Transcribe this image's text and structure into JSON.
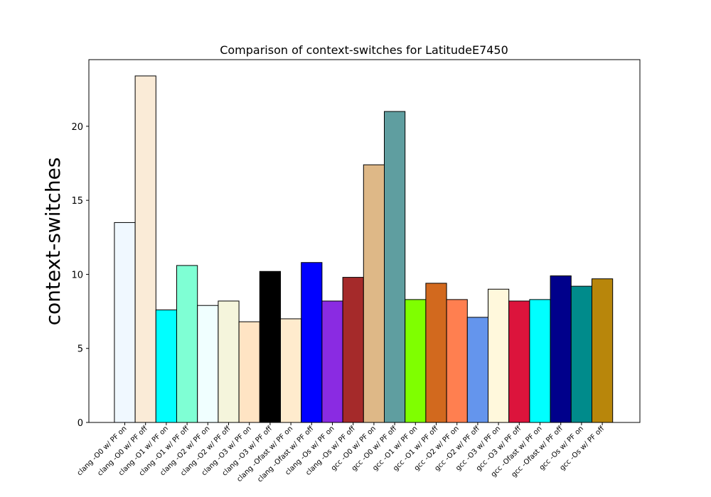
{
  "chart_data": {
    "type": "bar",
    "title": "Comparison of context-switches for LatitudeE7450",
    "xlabel": "",
    "ylabel": "context-switches",
    "ylim": [
      0,
      24.5
    ],
    "yticks": [
      0,
      5,
      10,
      15,
      20
    ],
    "grid": false,
    "categories": [
      "clang -O0 w/ PF on",
      "clang -O0 w/ PF off",
      "clang -O1 w/ PF on",
      "clang -O1 w/ PF off",
      "clang -O2 w/ PF on",
      "clang -O2 w/ PF off",
      "clang -O3 w/ PF on",
      "clang -O3 w/ PF off",
      "clang -Ofast w/ PF on",
      "clang -Ofast w/ PF off",
      "clang -Os w/ PF on",
      "clang -Os w/ PF off",
      "gcc -O0 w/ PF on",
      "gcc -O0 w/ PF off",
      "gcc -O1 w/ PF on",
      "gcc -O1 w/ PF off",
      "gcc -O2 w/ PF on",
      "gcc -O2 w/ PF off",
      "gcc -O3 w/ PF on",
      "gcc -O3 w/ PF off",
      "gcc -Ofast w/ PF on",
      "gcc -Ofast w/ PF off",
      "gcc -Os w/ PF on",
      "gcc -Os w/ PF off"
    ],
    "values": [
      13.5,
      23.4,
      7.6,
      10.6,
      7.9,
      8.2,
      6.8,
      10.2,
      7.0,
      10.8,
      8.2,
      9.8,
      17.4,
      21.0,
      8.3,
      9.4,
      8.3,
      7.1,
      9.0,
      8.2,
      8.3,
      9.9,
      9.2,
      9.7
    ],
    "colors": [
      "#f0f8ff",
      "#faebd7",
      "#00ffff",
      "#7fffd4",
      "#f0ffff",
      "#f5f5dc",
      "#ffe4c4",
      "#000000",
      "#ffebcd",
      "#0000ff",
      "#8a2be2",
      "#a52a2a",
      "#deb887",
      "#5f9ea0",
      "#7fff00",
      "#d2691e",
      "#ff7f50",
      "#6495ed",
      "#fff8dc",
      "#dc143c",
      "#00ffff",
      "#00008b",
      "#008b8b",
      "#b8860b"
    ]
  }
}
